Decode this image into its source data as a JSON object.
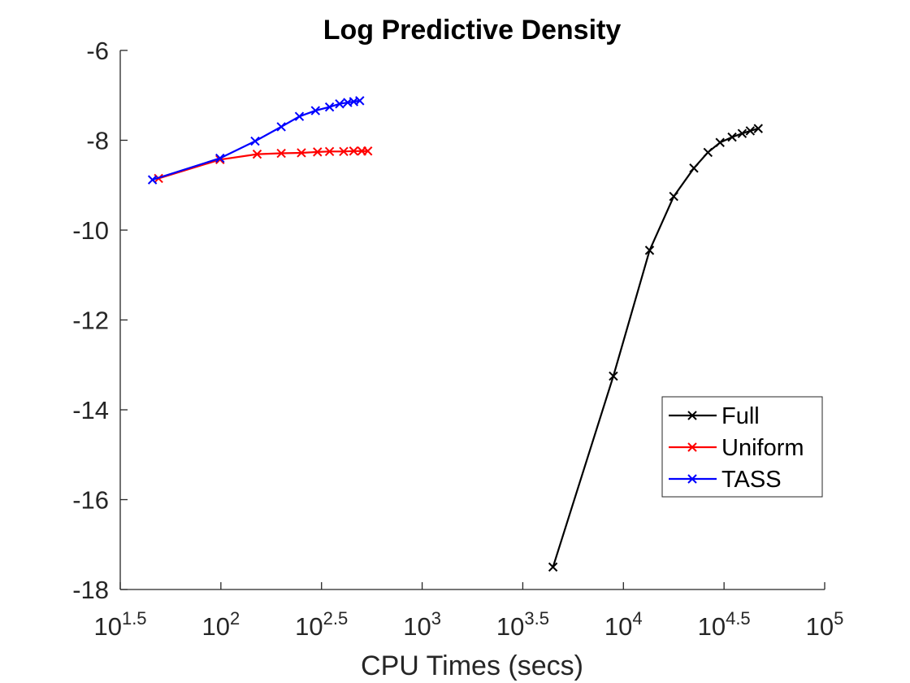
{
  "chart_data": {
    "type": "line",
    "title": "Log Predictive Density",
    "xlabel": "CPU Times (secs)",
    "ylabel": "",
    "xscale": "log10",
    "xlim": [
      31.62,
      100000
    ],
    "ylim": [
      -18,
      -6
    ],
    "x_ticks": [
      {
        "base": "10",
        "exp": "1.5"
      },
      {
        "base": "10",
        "exp": "2"
      },
      {
        "base": "10",
        "exp": "2.5"
      },
      {
        "base": "10",
        "exp": "3"
      },
      {
        "base": "10",
        "exp": "3.5"
      },
      {
        "base": "10",
        "exp": "4"
      },
      {
        "base": "10",
        "exp": "4.5"
      },
      {
        "base": "10",
        "exp": "5"
      }
    ],
    "y_ticks": [
      "-6",
      "-8",
      "-10",
      "-12",
      "-14",
      "-16",
      "-18"
    ],
    "legend_position": "lower-right",
    "grid": false,
    "series": [
      {
        "name": "Full",
        "color": "#000000",
        "marker": "x",
        "x": [
          4467,
          8913,
          13490,
          17780,
          22390,
          26300,
          30200,
          34670,
          38900,
          42660,
          46770
        ],
        "y": [
          -17.5,
          -13.25,
          -10.45,
          -9.25,
          -8.62,
          -8.27,
          -8.05,
          -7.93,
          -7.85,
          -7.79,
          -7.74
        ]
      },
      {
        "name": "Uniform",
        "color": "#ff0000",
        "marker": "x",
        "x": [
          49.0,
          99.0,
          151.4,
          199.5,
          251.2,
          302.0,
          346.7,
          407.4,
          457.1,
          501.2,
          537.0
        ],
        "y": [
          -8.85,
          -8.43,
          -8.31,
          -8.29,
          -8.28,
          -8.26,
          -8.25,
          -8.25,
          -8.24,
          -8.24,
          -8.24
        ]
      },
      {
        "name": "TASS",
        "color": "#0000ff",
        "marker": "x",
        "x": [
          45.7,
          99.0,
          147.9,
          199.5,
          245.5,
          295.1,
          346.7,
          389.0,
          426.6,
          457.1,
          489.8
        ],
        "y": [
          -8.88,
          -8.4,
          -8.02,
          -7.7,
          -7.47,
          -7.34,
          -7.26,
          -7.19,
          -7.16,
          -7.14,
          -7.12
        ]
      }
    ]
  }
}
